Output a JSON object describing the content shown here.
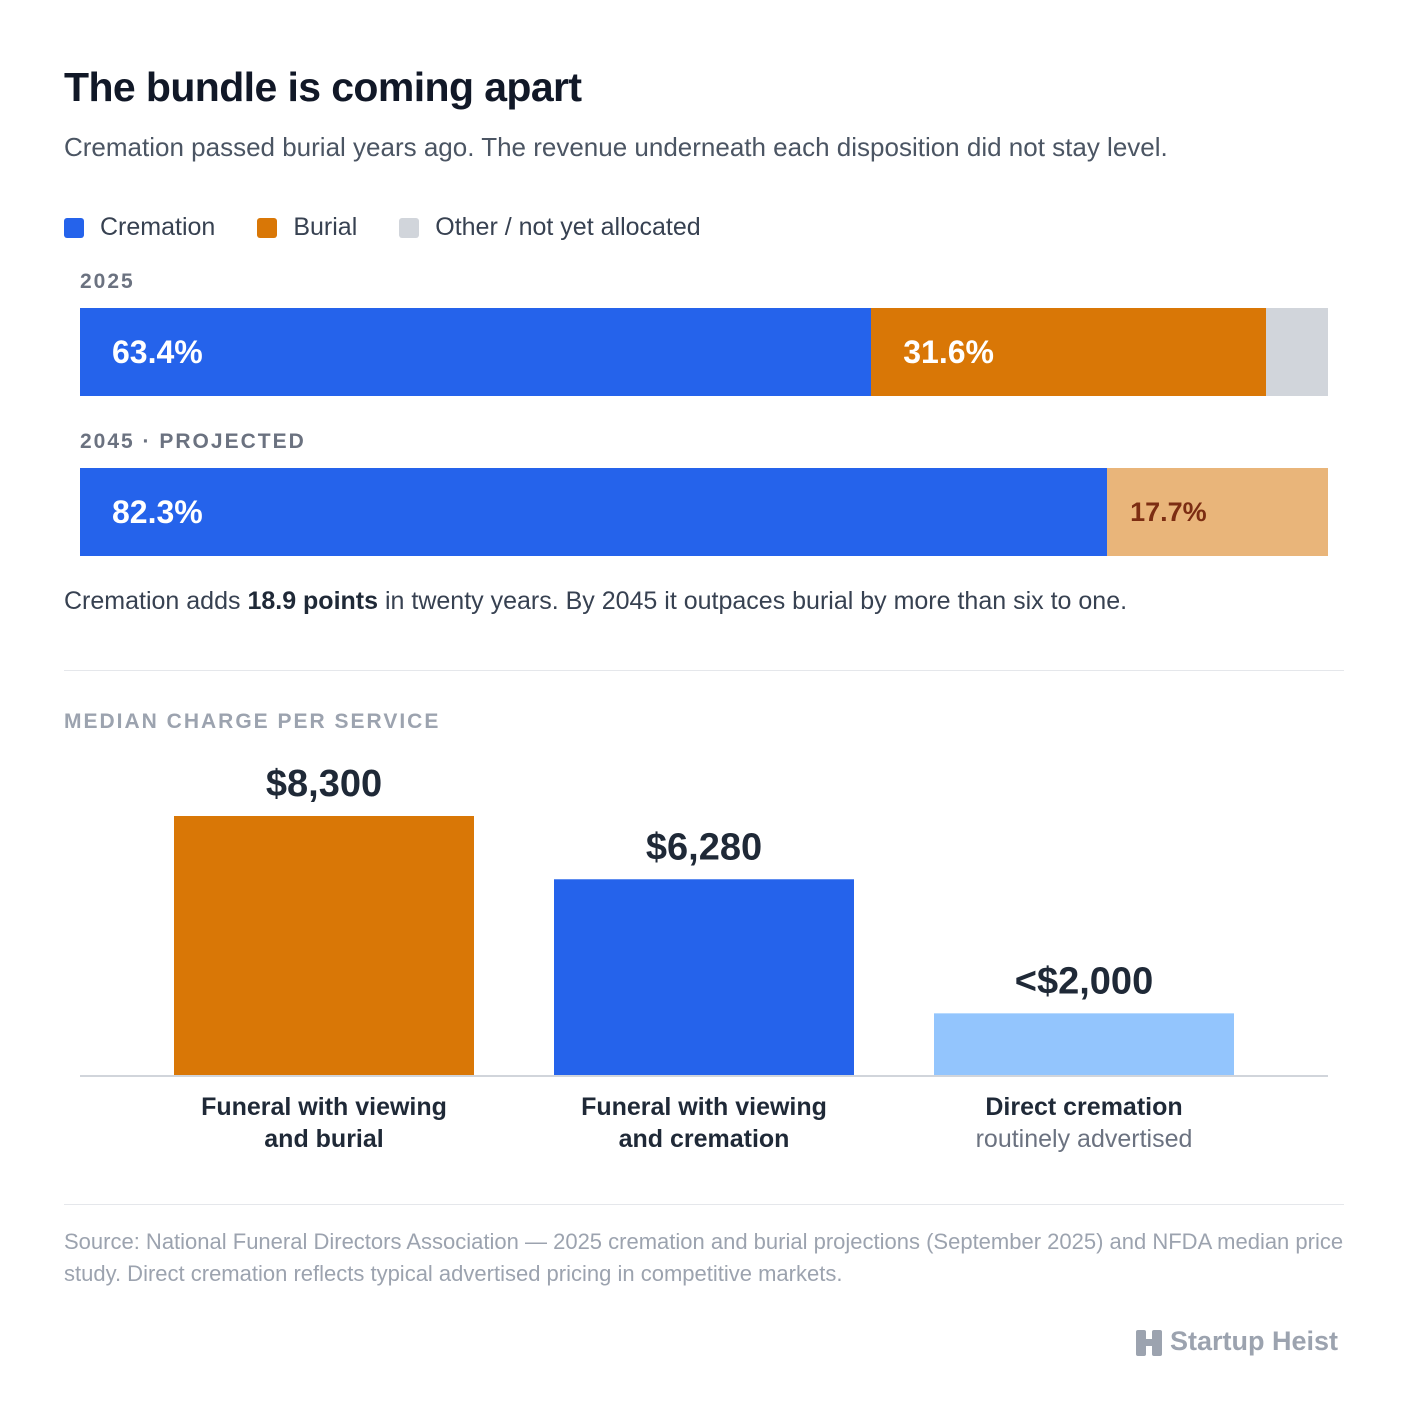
{
  "header": {
    "title": "The bundle is coming apart",
    "subtitle": "Cremation passed burial years ago. The revenue underneath each disposition did not stay level."
  },
  "legend": [
    {
      "label": "Cremation",
      "color": "#2563eb"
    },
    {
      "label": "Burial",
      "color": "#d97706"
    },
    {
      "label": "Other / not yet allocated",
      "color": "#d1d5db"
    }
  ],
  "takeaway": {
    "prefix": "Cremation adds ",
    "bold": "18.9 points",
    "suffix": " in twenty years. By 2045 it outpaces burial by more than six to one."
  },
  "section_label": "MEDIAN CHARGE PER SERVICE",
  "source": "Source: National Funeral Directors Association — 2025 cremation and burial projections (September 2025) and NFDA median price study. Direct cremation reflects typical advertised pricing in competitive markets.",
  "brand": {
    "name": "Startup Heist",
    "icon": "building-logo-icon"
  },
  "chart_data": [
    {
      "type": "bar",
      "orientation": "horizontal-stacked",
      "categories": [
        "2025",
        "2045 · PROJECTED"
      ],
      "series": [
        {
          "name": "Cremation",
          "values": [
            63.4,
            82.3
          ],
          "labels": [
            "63.4%",
            "82.3%"
          ],
          "color": "#2563eb"
        },
        {
          "name": "Burial",
          "values": [
            31.6,
            17.7
          ],
          "labels": [
            "31.6%",
            "17.7%"
          ],
          "color": "#d97706",
          "alt_color": "#e9b57a"
        },
        {
          "name": "Other / not yet allocated",
          "values": [
            5.0,
            0.0
          ],
          "labels": [
            "",
            ""
          ],
          "color": "#d1d5db"
        }
      ],
      "xlim": [
        0,
        100
      ],
      "legend": "top-left"
    },
    {
      "type": "bar",
      "title": "MEDIAN CHARGE PER SERVICE",
      "categories": [
        {
          "main": "Funeral with viewing",
          "main2": "and burial",
          "sub": ""
        },
        {
          "main": "Funeral with viewing",
          "main2": "and cremation",
          "sub": ""
        },
        {
          "main": "Direct cremation",
          "main2": "",
          "sub": "routinely advertised"
        }
      ],
      "values": [
        8300,
        6280,
        2000
      ],
      "value_labels": [
        "$8,300",
        "$6,280",
        "<$2,000"
      ],
      "colors": [
        "#d97706",
        "#2563eb",
        "#93c5fd"
      ],
      "ylim": [
        0,
        8300
      ],
      "grid": false
    }
  ]
}
